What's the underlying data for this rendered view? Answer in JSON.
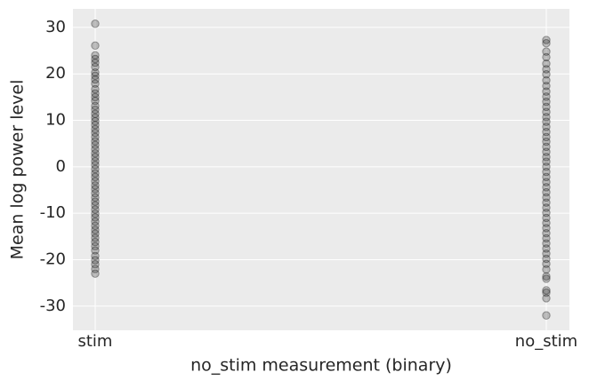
{
  "chart_data": {
    "type": "strip",
    "xlabel": "no_stim measurement (binary)",
    "ylabel": "Mean log power level",
    "categories": [
      "stim",
      "no_stim"
    ],
    "values": [
      [
        30.8,
        26.1,
        24.0,
        23.2,
        22.4,
        21.5,
        20.3,
        19.6,
        18.8,
        17.9,
        16.7,
        15.8,
        15.0,
        14.2,
        13.1,
        12.3,
        11.4,
        10.6,
        9.8,
        9.0,
        8.1,
        7.3,
        6.4,
        5.5,
        4.7,
        3.8,
        2.9,
        2.1,
        1.2,
        0.4,
        -0.5,
        -1.4,
        -2.2,
        -3.1,
        -4.0,
        -4.8,
        -5.7,
        -6.6,
        -7.5,
        -8.3,
        -9.2,
        -10.1,
        -10.9,
        -11.8,
        -12.7,
        -13.6,
        -14.4,
        -15.3,
        -16.2,
        -17.1,
        -18.0,
        -19.2,
        -20.1,
        -21.0,
        -22.0,
        -23.0
      ],
      [
        27.3,
        26.6,
        24.8,
        23.6,
        22.2,
        21.0,
        19.9,
        18.6,
        17.4,
        16.2,
        15.1,
        14.0,
        12.9,
        11.8,
        10.7,
        9.7,
        8.6,
        7.5,
        6.4,
        5.4,
        4.3,
        3.2,
        2.1,
        1.1,
        0.0,
        -1.1,
        -2.2,
        -3.3,
        -4.4,
        -5.5,
        -6.6,
        -7.7,
        -8.8,
        -9.9,
        -11.0,
        -12.1,
        -13.2,
        -14.3,
        -15.4,
        -16.5,
        -17.6,
        -18.7,
        -19.8,
        -20.9,
        -22.1,
        -23.6,
        -24.1,
        -26.6,
        -27.1,
        -28.3,
        -32.0
      ]
    ],
    "color": "#000000",
    "alpha": 0.22,
    "ylim": [
      -35.2,
      34.0
    ],
    "yticks": [
      -30,
      -20,
      -10,
      0,
      10,
      20,
      30
    ],
    "grid": true
  }
}
